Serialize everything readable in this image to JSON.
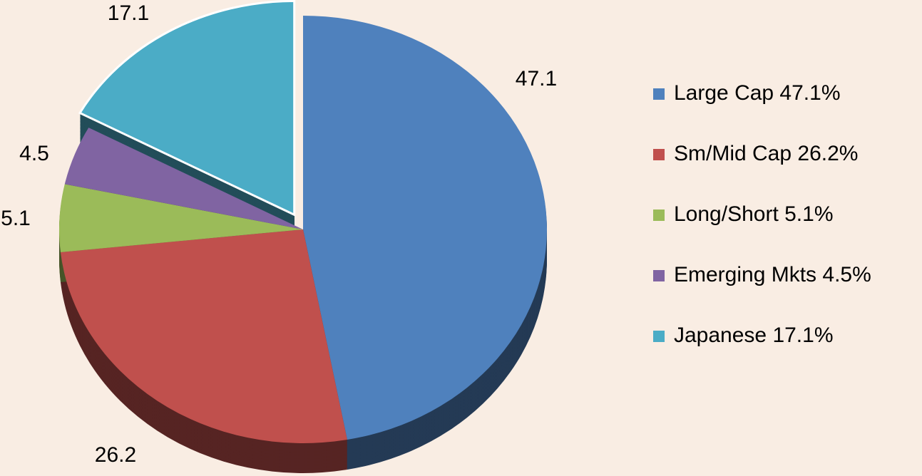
{
  "chart_data": {
    "type": "pie",
    "categories": [
      "Large Cap 47.1%",
      "Sm/Mid Cap 26.2%",
      "Long/Short 5.1%",
      "Emerging Mkts 4.5%",
      "Japanese 17.1%"
    ],
    "values": [
      47.1,
      26.2,
      5.1,
      4.5,
      17.1
    ],
    "colors": [
      "#4f81bd",
      "#c0504d",
      "#9bbb59",
      "#8064a2",
      "#4bacc6"
    ],
    "legend": "right"
  }
}
